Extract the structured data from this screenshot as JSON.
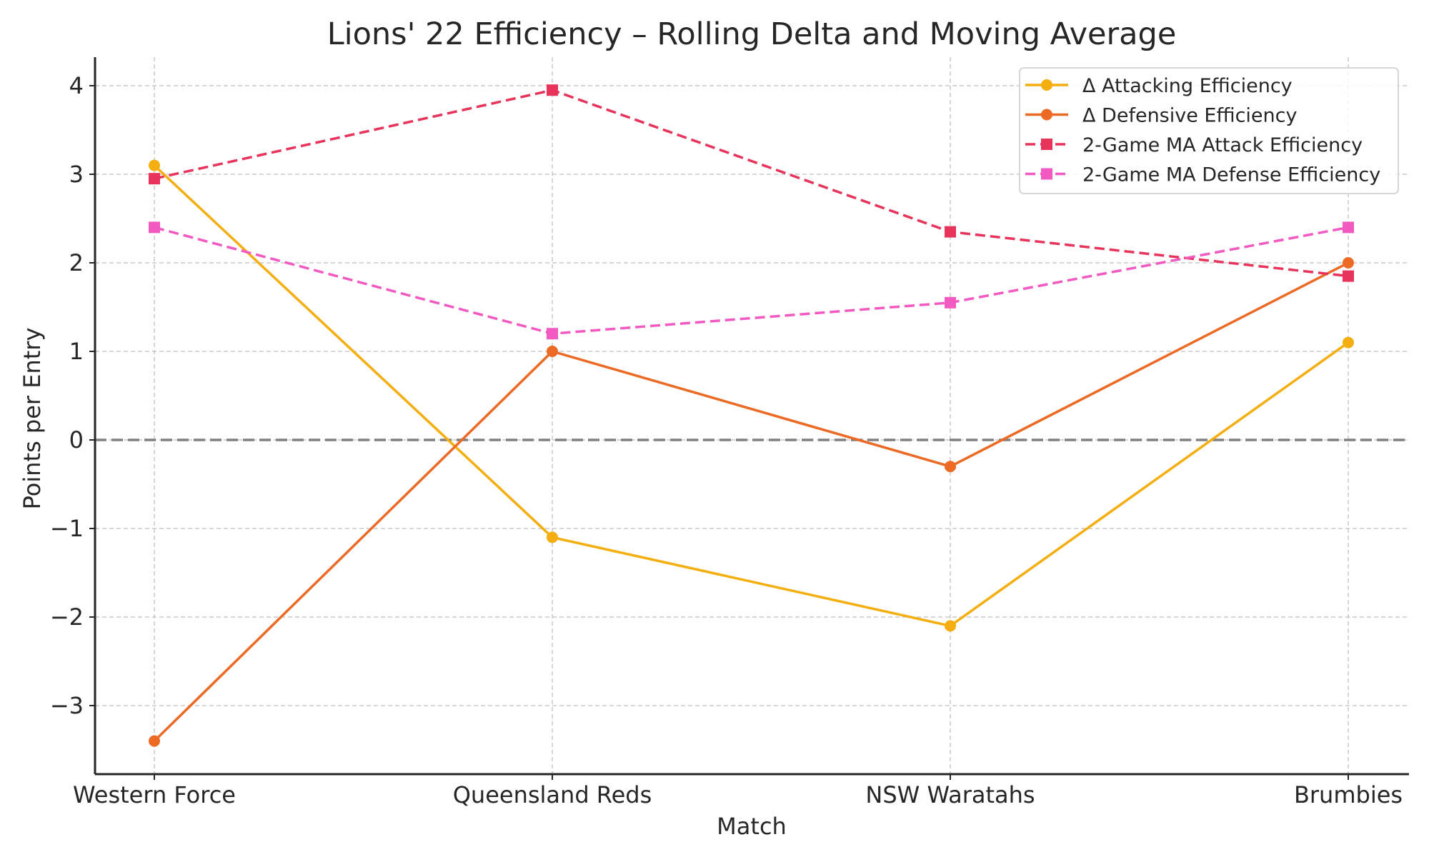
{
  "chart_data": {
    "type": "line",
    "title": "Lions' 22 Efficiency – Rolling Delta and Moving Average",
    "xlabel": "Match",
    "ylabel": "Points per Entry",
    "categories": [
      "Western Force",
      "Queensland Reds",
      "NSW Waratahs",
      "Brumbies"
    ],
    "yticks": [
      -3,
      -2,
      -1,
      0,
      1,
      2,
      3,
      4
    ],
    "ytick_labels": [
      "−3",
      "−2",
      "−1",
      "0",
      "1",
      "2",
      "3",
      "4"
    ],
    "ylim": [
      -3.77,
      4.3
    ],
    "grid": true,
    "reference_line": {
      "y": 0,
      "style": "dashed",
      "color": "#808080"
    },
    "legend_position": "top-right",
    "series": [
      {
        "name": "Δ Attacking Efficiency",
        "values": [
          3.1,
          -1.1,
          -2.1,
          1.1
        ],
        "color": "#F5AE0F",
        "line": "solid",
        "marker": "circle"
      },
      {
        "name": "Δ Defensive Efficiency",
        "values": [
          -3.4,
          1.0,
          -0.3,
          2.0
        ],
        "color": "#EC6A24",
        "line": "solid",
        "marker": "circle"
      },
      {
        "name": "2-Game MA Attack Efficiency",
        "values": [
          2.95,
          3.95,
          2.35,
          1.85
        ],
        "color": "#E8335A",
        "line": "dashed",
        "marker": "square"
      },
      {
        "name": "2-Game MA Defense Efficiency",
        "values": [
          2.4,
          1.2,
          1.55,
          2.4
        ],
        "color": "#F25AC2",
        "line": "dashed",
        "marker": "square"
      }
    ]
  }
}
